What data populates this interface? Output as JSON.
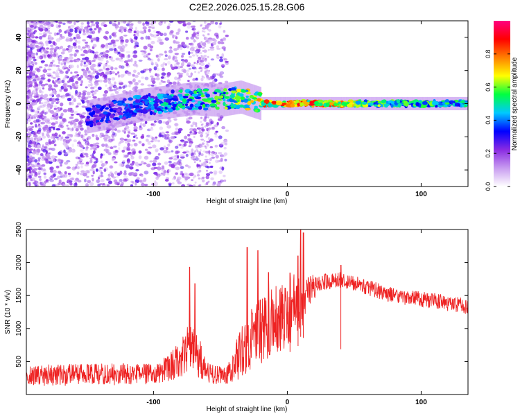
{
  "title": "C2E2.2026.025.15.28.G06",
  "colors": {
    "snr_line": "#ee2222",
    "colormap": [
      "#ffffff",
      "#c89cf0",
      "#8a2be2",
      "#0000ff",
      "#00c8ff",
      "#00ff40",
      "#ffff00",
      "#ff8000",
      "#ff0000",
      "#ff0080"
    ]
  },
  "chart_data": [
    {
      "type": "heatmap",
      "title": "",
      "xlabel": "Height of straight line (km)",
      "ylabel": "Frequency (Hz)",
      "xlim": [
        -195,
        135
      ],
      "ylim": [
        -50,
        50
      ],
      "x_ticks": [
        -100,
        0,
        100
      ],
      "x_tick_labels": [
        "-100",
        "0",
        "100"
      ],
      "y_ticks": [
        -40,
        -20,
        0,
        20,
        40
      ],
      "y_tick_labels": [
        "-40",
        "-20",
        "0",
        "20",
        "40"
      ],
      "colorbar": {
        "label": "Normalized spectral amplitude",
        "range": [
          0,
          1
        ],
        "ticks": [
          0.0,
          0.2,
          0.4,
          0.6,
          0.8
        ],
        "tick_labels": [
          "0.0",
          "0.2",
          "0.4",
          "0.6",
          "0.8"
        ]
      },
      "ridge": {
        "description": "Dominant Doppler trace near 0 Hz",
        "points": [
          {
            "x": -150,
            "y": -8,
            "amp": 0.32
          },
          {
            "x": -130,
            "y": -5,
            "amp": 0.36
          },
          {
            "x": -110,
            "y": -1,
            "amp": 0.42
          },
          {
            "x": -90,
            "y": 1,
            "amp": 0.48
          },
          {
            "x": -70,
            "y": 3,
            "amp": 0.52
          },
          {
            "x": -50,
            "y": 2,
            "amp": 0.58
          },
          {
            "x": -35,
            "y": 4,
            "amp": 0.62
          },
          {
            "x": -20,
            "y": 0,
            "amp": 0.78
          },
          {
            "x": 0,
            "y": 0,
            "amp": 0.9
          },
          {
            "x": 30,
            "y": 0,
            "amp": 0.86
          },
          {
            "x": 60,
            "y": 0,
            "amp": 0.62
          },
          {
            "x": 100,
            "y": 0,
            "amp": 0.58
          },
          {
            "x": 135,
            "y": 0,
            "amp": 0.5
          }
        ]
      }
    },
    {
      "type": "line",
      "title": "",
      "xlabel": "Height of straight line (km)",
      "ylabel": "SNR (10 * v/v)",
      "xlim": [
        -195,
        135
      ],
      "ylim": [
        0,
        2500
      ],
      "x_ticks": [
        -100,
        0,
        100
      ],
      "x_tick_labels": [
        "-100",
        "0",
        "100"
      ],
      "y_ticks": [
        500,
        1000,
        1500,
        2000,
        2500
      ],
      "y_tick_labels": [
        "500",
        "1000",
        "1500",
        "2000",
        "2500"
      ],
      "series": [
        {
          "name": "SNR",
          "envelope_x": [
            -195,
            -150,
            -100,
            -90,
            -80,
            -73,
            -65,
            -60,
            -55,
            -45,
            -35,
            -30,
            -20,
            -10,
            0,
            5,
            10,
            15,
            25,
            40,
            60,
            80,
            100,
            120,
            135
          ],
          "envelope_mean": [
            290,
            300,
            310,
            380,
            560,
            780,
            520,
            340,
            300,
            290,
            620,
            760,
            960,
            1120,
            1220,
            1330,
            1450,
            1560,
            1700,
            1740,
            1620,
            1500,
            1440,
            1390,
            1320
          ],
          "envelope_spread": [
            160,
            170,
            160,
            200,
            300,
            420,
            300,
            160,
            140,
            130,
            380,
            480,
            520,
            520,
            500,
            500,
            560,
            240,
            130,
            120,
            120,
            120,
            120,
            130,
            120
          ],
          "spikes": [
            {
              "x": -73,
              "y": 1930
            },
            {
              "x": -69,
              "y": 1680
            },
            {
              "x": -30,
              "y": 2230
            },
            {
              "x": -22,
              "y": 2180
            },
            {
              "x": -14,
              "y": 1850
            },
            {
              "x": 2,
              "y": 1840
            },
            {
              "x": 8,
              "y": 2100
            },
            {
              "x": 10,
              "y": 2500
            },
            {
              "x": 12,
              "y": 2450
            },
            {
              "x": 40,
              "y": 1960
            }
          ]
        }
      ]
    }
  ]
}
